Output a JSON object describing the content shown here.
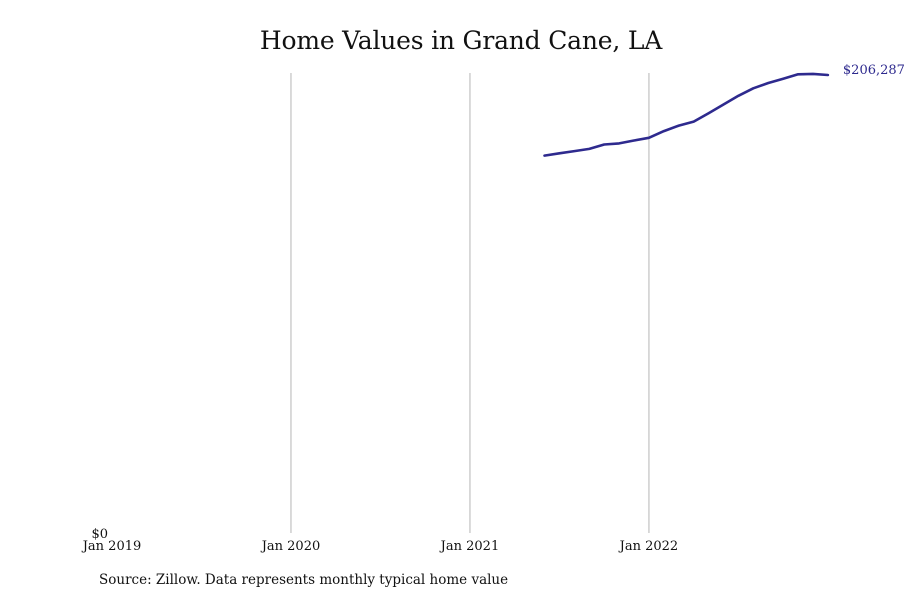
{
  "chart_data": {
    "type": "line",
    "title": "Home Values in Grand Cane, LA",
    "xlabel": "",
    "ylabel": "",
    "x_ticks": [
      {
        "label": "Jan 2019",
        "date": "2019-01"
      },
      {
        "label": "Jan 2020",
        "date": "2020-01"
      },
      {
        "label": "Jan 2021",
        "date": "2021-01"
      },
      {
        "label": "Jan 2022",
        "date": "2022-01"
      }
    ],
    "y_ticks": [
      {
        "label": "$0",
        "value": 0
      }
    ],
    "xlim": [
      "2019-01",
      "2022-12"
    ],
    "ylim": [
      0,
      206287
    ],
    "grid": "vertical",
    "series": [
      {
        "color": "#2e2a8e",
        "end_label": "$206,287",
        "points": [
          {
            "x": "2021-06",
            "y": 170000
          },
          {
            "x": "2021-07",
            "y": 171000
          },
          {
            "x": "2021-08",
            "y": 172000
          },
          {
            "x": "2021-09",
            "y": 173000
          },
          {
            "x": "2021-10",
            "y": 175000
          },
          {
            "x": "2021-11",
            "y": 175500
          },
          {
            "x": "2021-12",
            "y": 176800
          },
          {
            "x": "2022-01",
            "y": 178000
          },
          {
            "x": "2022-02",
            "y": 181000
          },
          {
            "x": "2022-03",
            "y": 183500
          },
          {
            "x": "2022-04",
            "y": 185300
          },
          {
            "x": "2022-05",
            "y": 189100
          },
          {
            "x": "2022-06",
            "y": 193000
          },
          {
            "x": "2022-07",
            "y": 196900
          },
          {
            "x": "2022-08",
            "y": 200300
          },
          {
            "x": "2022-09",
            "y": 202700
          },
          {
            "x": "2022-10",
            "y": 204600
          },
          {
            "x": "2022-11",
            "y": 206600
          },
          {
            "x": "2022-12",
            "y": 206800
          },
          {
            "x": "2023-01",
            "y": 206287
          }
        ]
      }
    ]
  },
  "source_note": "Source: Zillow. Data represents monthly typical home value"
}
